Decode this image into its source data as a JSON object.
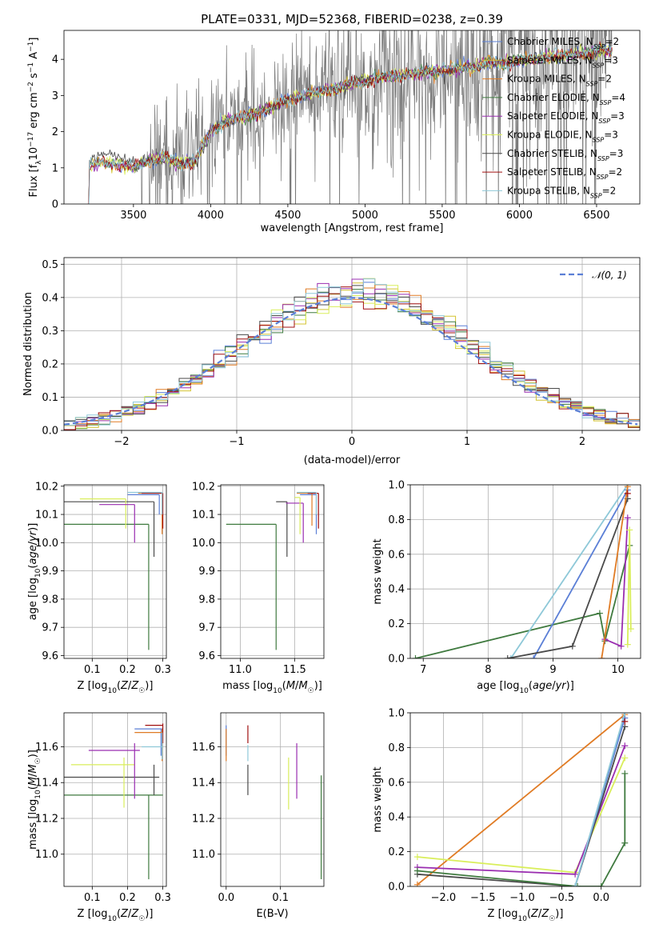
{
  "figure": {
    "title": "PLATE=0331, MJD=52368, FIBERID=0238, z=0.39"
  },
  "models": [
    {
      "name": "Chabrier MILES",
      "nssp": "2",
      "color": "#5b7fd6"
    },
    {
      "name": "Salpeter MILES",
      "nssp": "3",
      "color": "#d4c430"
    },
    {
      "name": "Kroupa MILES",
      "nssp": "2",
      "color": "#e07b24"
    },
    {
      "name": "Chabrier ELODIE",
      "nssp": "4",
      "color": "#3f7a3f"
    },
    {
      "name": "Salpeter ELODIE",
      "nssp": "3",
      "color": "#9a2db0"
    },
    {
      "name": "Kroupa ELODIE",
      "nssp": "3",
      "color": "#d9ee5a"
    },
    {
      "name": "Chabrier STELIB",
      "nssp": "3",
      "color": "#4a4a4a"
    },
    {
      "name": "Salpeter STELIB",
      "nssp": "2",
      "color": "#a01010"
    },
    {
      "name": "Kroupa STELIB",
      "nssp": "2",
      "color": "#8ec8d8"
    }
  ],
  "chart_data": [
    {
      "id": "spectrum",
      "type": "line",
      "xlabel": "wavelength [Angstrom, rest frame]",
      "ylabel": "Flux [f_λ10^-17 erg cm^-2 s^-1 A^-1]",
      "xlim": [
        3050,
        6780
      ],
      "ylim": [
        0,
        4.8
      ],
      "xticks": [
        3500,
        4000,
        4500,
        5000,
        5500,
        6000,
        6500
      ],
      "yticks": [
        0,
        1,
        2,
        3,
        4
      ],
      "data_color": "#7a7a7a",
      "continuum": {
        "x": [
          3210,
          3300,
          3400,
          3500,
          3600,
          3700,
          3800,
          3900,
          4000,
          4100,
          4200,
          4300,
          4400,
          4500,
          4600,
          4700,
          4800,
          4900,
          5000,
          5100,
          5200,
          5300,
          5400,
          5500,
          5600,
          5700,
          5800,
          5900,
          6000,
          6100,
          6200,
          6300,
          6400,
          6500,
          6600
        ],
        "y": [
          1.05,
          1.15,
          1.1,
          1.0,
          1.2,
          1.3,
          1.1,
          1.2,
          2.0,
          2.3,
          2.4,
          2.5,
          2.7,
          2.9,
          3.0,
          3.1,
          3.2,
          3.3,
          3.4,
          3.5,
          3.55,
          3.6,
          3.65,
          3.7,
          3.75,
          3.8,
          3.9,
          3.9,
          4.0,
          4.0,
          4.1,
          4.1,
          4.15,
          4.2,
          4.25
        ]
      },
      "legend_position": "upper-right"
    },
    {
      "id": "residuals",
      "type": "histogram",
      "xlabel": "(data-model)/error",
      "ylabel": "Normed distribution",
      "xlim": [
        -2.5,
        2.5
      ],
      "ylim": [
        0,
        0.52
      ],
      "xticks": [
        -2,
        -1,
        0,
        1,
        2
      ],
      "yticks": [
        0.0,
        0.1,
        0.2,
        0.3,
        0.4,
        0.5
      ],
      "grid": true,
      "reference_curve": {
        "name": "𝒩(0, 1)",
        "mean": 0,
        "sigma": 1,
        "color": "#5b7fd6"
      },
      "legend_position": "upper-right"
    },
    {
      "id": "age-vs-Z",
      "type": "errorbar",
      "xlabel": "Z [log10(Z/Z☉)]",
      "ylabel": "age  [log10(age/yr)]",
      "xlim": [
        0.02,
        0.31
      ],
      "ylim": [
        9.59,
        10.205
      ],
      "xticks": [
        0.1,
        0.2,
        0.3
      ],
      "yticks": [
        9.6,
        9.7,
        9.8,
        9.9,
        10.0,
        10.1,
        10.2
      ],
      "grid": true,
      "points": [
        {
          "m": 3,
          "x": 0.26,
          "xlo": 0.02,
          "xhi": 0.26,
          "y": 10.065,
          "ylo": 9.62,
          "yhi": 10.065
        },
        {
          "m": 6,
          "x": 0.275,
          "xlo": 0.02,
          "xhi": 0.275,
          "y": 10.145,
          "ylo": 9.95,
          "yhi": 10.145
        },
        {
          "m": 5,
          "x": 0.195,
          "xlo": 0.065,
          "xhi": 0.195,
          "y": 10.155,
          "ylo": 10.05,
          "yhi": 10.155
        },
        {
          "m": 4,
          "x": 0.22,
          "xlo": 0.12,
          "xhi": 0.22,
          "y": 10.135,
          "ylo": 10.0,
          "yhi": 10.135
        },
        {
          "m": 0,
          "x": 0.29,
          "xlo": 0.2,
          "xhi": 0.29,
          "y": 10.17,
          "ylo": 10.1,
          "yhi": 10.17
        },
        {
          "m": 2,
          "x": 0.298,
          "xlo": 0.23,
          "xhi": 0.298,
          "y": 10.175,
          "ylo": 10.03,
          "yhi": 10.175
        },
        {
          "m": 7,
          "x": 0.3,
          "xlo": 0.24,
          "xhi": 0.3,
          "y": 10.175,
          "ylo": 10.05,
          "yhi": 10.175
        },
        {
          "m": 8,
          "x": 0.298,
          "xlo": 0.2,
          "xhi": 0.298,
          "y": 10.178,
          "ylo": 10.1,
          "yhi": 10.178
        }
      ]
    },
    {
      "id": "age-vs-mass",
      "type": "errorbar",
      "xlabel": "mass [log10(M/M☉)]",
      "ylabel": "",
      "xlim": [
        10.82,
        11.77
      ],
      "ylim": [
        9.59,
        10.205
      ],
      "xticks": [
        11.0,
        11.5
      ],
      "yticks": [
        9.6,
        9.7,
        9.8,
        9.9,
        10.0,
        10.1,
        10.2
      ],
      "grid": true,
      "points": [
        {
          "m": 3,
          "x": 11.33,
          "xlo": 10.87,
          "xhi": 11.33,
          "y": 10.065,
          "ylo": 9.62,
          "yhi": 10.065
        },
        {
          "m": 6,
          "x": 11.43,
          "xlo": 11.33,
          "xhi": 11.43,
          "y": 10.145,
          "ylo": 9.95,
          "yhi": 10.145
        },
        {
          "m": 4,
          "x": 11.58,
          "xlo": 11.42,
          "xhi": 11.58,
          "y": 10.14,
          "ylo": 10.0,
          "yhi": 10.14
        },
        {
          "m": 5,
          "x": 11.55,
          "xlo": 11.5,
          "xhi": 11.55,
          "y": 10.16,
          "ylo": 10.03,
          "yhi": 10.16
        },
        {
          "m": 0,
          "x": 11.7,
          "xlo": 11.55,
          "xhi": 11.7,
          "y": 10.17,
          "ylo": 10.03,
          "yhi": 10.17
        },
        {
          "m": 2,
          "x": 11.66,
          "xlo": 11.52,
          "xhi": 11.66,
          "y": 10.175,
          "ylo": 10.06,
          "yhi": 10.175
        },
        {
          "m": 7,
          "x": 11.72,
          "xlo": 11.62,
          "xhi": 11.72,
          "y": 10.175,
          "ylo": 10.05,
          "yhi": 10.175
        },
        {
          "m": 8,
          "x": 11.7,
          "xlo": 11.52,
          "xhi": 11.7,
          "y": 10.178,
          "ylo": 10.1,
          "yhi": 10.178
        }
      ]
    },
    {
      "id": "weight-vs-age",
      "type": "line",
      "xlabel": "age  [log10(age/yr)]",
      "ylabel": "mass weight",
      "xlim": [
        6.8,
        10.35
      ],
      "ylim": [
        0,
        1.0
      ],
      "xticks": [
        7,
        8,
        9,
        10
      ],
      "yticks": [
        0.0,
        0.2,
        0.4,
        0.6,
        0.8,
        1.0
      ],
      "grid": true,
      "series": [
        {
          "m": 3,
          "x": [
            6.88,
            9.72,
            9.8,
            10.18,
            10.18
          ],
          "y": [
            0.0,
            0.26,
            0.1,
            0.65,
            0.65
          ]
        },
        {
          "m": 8,
          "x": [
            8.35,
            10.15
          ],
          "y": [
            0.0,
            1.0
          ]
        },
        {
          "m": 0,
          "x": [
            8.7,
            10.15
          ],
          "y": [
            0.0,
            0.97
          ]
        },
        {
          "m": 6,
          "x": [
            8.3,
            9.3,
            10.15
          ],
          "y": [
            0.0,
            0.07,
            0.92
          ]
        },
        {
          "m": 4,
          "x": [
            9.8,
            10.05,
            10.15
          ],
          "y": [
            0.11,
            0.07,
            0.81
          ]
        },
        {
          "m": 2,
          "x": [
            9.75,
            10.15
          ],
          "y": [
            0.0,
            0.99
          ]
        },
        {
          "m": 5,
          "x": [
            10.15,
            10.18,
            10.2
          ],
          "y": [
            0.08,
            0.74,
            0.17
          ]
        },
        {
          "m": 7,
          "x": [
            10.15
          ],
          "y": [
            0.95
          ]
        }
      ]
    },
    {
      "id": "mass-vs-Z",
      "type": "errorbar",
      "xlabel": "Z [log10(Z/Z☉)]",
      "ylabel": "mass [log10(M/M☉)]",
      "xlim": [
        0.02,
        0.31
      ],
      "ylim": [
        10.82,
        11.79
      ],
      "xticks": [
        0.1,
        0.2,
        0.3
      ],
      "yticks": [
        11.0,
        11.2,
        11.4,
        11.6
      ],
      "grid": true,
      "points": [
        {
          "m": 3,
          "x": 0.26,
          "xlo": 0.02,
          "xhi": 0.3,
          "y": 11.33,
          "ylo": 10.86,
          "yhi": 11.33
        },
        {
          "m": 6,
          "x": 0.275,
          "xlo": 0.02,
          "xhi": 0.29,
          "y": 11.43,
          "ylo": 11.33,
          "yhi": 11.5
        },
        {
          "m": 5,
          "x": 0.19,
          "xlo": 0.04,
          "xhi": 0.22,
          "y": 11.5,
          "ylo": 11.26,
          "yhi": 11.54
        },
        {
          "m": 4,
          "x": 0.22,
          "xlo": 0.09,
          "xhi": 0.235,
          "y": 11.58,
          "ylo": 11.31,
          "yhi": 11.62
        },
        {
          "m": 0,
          "x": 0.295,
          "xlo": 0.22,
          "xhi": 0.3,
          "y": 11.7,
          "ylo": 11.55,
          "yhi": 11.7
        },
        {
          "m": 2,
          "x": 0.298,
          "xlo": 0.22,
          "xhi": 0.3,
          "y": 11.68,
          "ylo": 11.52,
          "yhi": 11.7
        },
        {
          "m": 7,
          "x": 0.3,
          "xlo": 0.25,
          "xhi": 0.3,
          "y": 11.72,
          "ylo": 11.62,
          "yhi": 11.73
        },
        {
          "m": 8,
          "x": 0.298,
          "xlo": 0.24,
          "xhi": 0.3,
          "y": 11.6,
          "ylo": 11.53,
          "yhi": 11.68
        }
      ]
    },
    {
      "id": "mass-vs-ebv",
      "type": "errorbar",
      "xlabel": "E(B-V)",
      "ylabel": "",
      "xlim": [
        -0.01,
        0.18
      ],
      "ylim": [
        10.82,
        11.79
      ],
      "xticks": [
        0.0,
        0.1
      ],
      "yticks": [
        11.0,
        11.2,
        11.4,
        11.6
      ],
      "grid": true,
      "points": [
        {
          "m": 3,
          "x": 0.175,
          "y": 11.2,
          "ylo": 10.86,
          "yhi": 11.44
        },
        {
          "m": 6,
          "x": 0.04,
          "y": 11.42,
          "ylo": 11.33,
          "yhi": 11.5
        },
        {
          "m": 5,
          "x": 0.115,
          "y": 11.4,
          "ylo": 11.25,
          "yhi": 11.54
        },
        {
          "m": 4,
          "x": 0.13,
          "y": 11.47,
          "ylo": 11.31,
          "yhi": 11.62
        },
        {
          "m": 0,
          "x": 0.0,
          "y": 11.7,
          "ylo": 11.55,
          "yhi": 11.72
        },
        {
          "m": 2,
          "x": 0.0,
          "y": 11.6,
          "ylo": 11.52,
          "yhi": 11.7
        },
        {
          "m": 7,
          "x": 0.04,
          "y": 11.67,
          "ylo": 11.62,
          "yhi": 11.72
        },
        {
          "m": 8,
          "x": 0.04,
          "y": 11.56,
          "ylo": 11.52,
          "yhi": 11.61
        }
      ]
    },
    {
      "id": "weight-vs-Z",
      "type": "line",
      "xlabel": "Z [log10(Z/Z☉)]",
      "ylabel": "mass weight",
      "xlim": [
        -2.42,
        0.5
      ],
      "ylim": [
        0,
        1.0
      ],
      "xticks": [
        -2.0,
        -1.5,
        -1.0,
        -0.5,
        0.0
      ],
      "yticks": [
        0.0,
        0.2,
        0.4,
        0.6,
        0.8,
        1.0
      ],
      "grid": true,
      "series": [
        {
          "m": 2,
          "x": [
            -2.33,
            0.3
          ],
          "y": [
            0.01,
            0.99
          ]
        },
        {
          "m": 5,
          "x": [
            -2.33,
            -0.33,
            0.3
          ],
          "y": [
            0.17,
            0.08,
            0.74
          ]
        },
        {
          "m": 4,
          "x": [
            -2.33,
            -0.33,
            0.3
          ],
          "y": [
            0.11,
            0.07,
            0.81
          ]
        },
        {
          "m": 6,
          "x": [
            -2.33,
            -0.33,
            0.3
          ],
          "y": [
            0.07,
            0.0,
            0.92
          ]
        },
        {
          "m": 3,
          "x": [
            -2.33,
            -0.3,
            0.0,
            0.3,
            0.3
          ],
          "y": [
            0.09,
            0.0,
            0.0,
            0.25,
            0.65
          ]
        },
        {
          "m": 0,
          "x": [
            -0.33,
            0.3
          ],
          "y": [
            0.0,
            0.97
          ]
        },
        {
          "m": 8,
          "x": [
            -0.33,
            0.3
          ],
          "y": [
            0.0,
            1.0
          ]
        },
        {
          "m": 7,
          "x": [
            0.3
          ],
          "y": [
            0.95
          ]
        }
      ]
    }
  ]
}
